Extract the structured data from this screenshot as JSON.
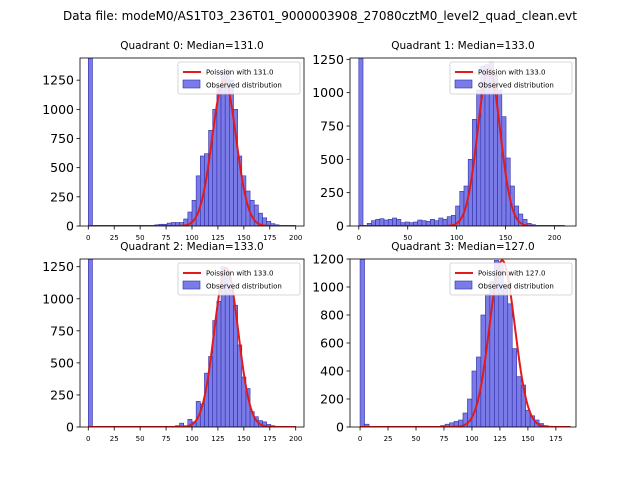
{
  "figure": {
    "suptitle": "Data file: modeM0/AS1T03_236T01_9000003908_27080cztM0_level2_quad_clean.evt"
  },
  "colors": {
    "hist_fill": "#7b7be8",
    "hist_edge": "#3030a8",
    "fit_line": "#e31a1c",
    "axis": "#000000"
  },
  "chart_data": [
    {
      "type": "bar",
      "title": "Quadrant 0: Median=131.0",
      "xlim": [
        -8,
        208
      ],
      "ylim": [
        0,
        1440
      ],
      "xticks": [
        0,
        25,
        50,
        75,
        100,
        125,
        150,
        175,
        200
      ],
      "yticks": [
        0,
        250,
        500,
        750,
        1000,
        1250
      ],
      "bin_width": 4,
      "legend": {
        "placement": "top-right",
        "entries": [
          "Poission with 131.0",
          "Observed distribution"
        ]
      },
      "poisson": {
        "label": "Poission with 131.0",
        "mean": 131.0,
        "peak": 1250,
        "sigma": 11.5,
        "range": [
          0,
          200
        ]
      },
      "histogram": {
        "label": "Observed distribution",
        "bin_edges": [
          0,
          4,
          8,
          12,
          16,
          20,
          24,
          28,
          32,
          36,
          40,
          44,
          48,
          52,
          56,
          60,
          64,
          68,
          72,
          76,
          80,
          84,
          88,
          92,
          96,
          100,
          104,
          108,
          112,
          116,
          120,
          124,
          128,
          132,
          136,
          140,
          144,
          148,
          152,
          156,
          160,
          164,
          168,
          172,
          176,
          180,
          184,
          188,
          192,
          196,
          200
        ],
        "counts": [
          1440,
          3,
          3,
          3,
          3,
          3,
          3,
          3,
          3,
          3,
          3,
          3,
          3,
          3,
          3,
          3,
          10,
          15,
          15,
          25,
          30,
          30,
          30,
          60,
          120,
          220,
          430,
          600,
          620,
          820,
          1000,
          1200,
          1330,
          1340,
          1250,
          1000,
          600,
          430,
          300,
          220,
          180,
          110,
          70,
          40,
          20,
          10,
          5,
          3,
          3,
          3
        ]
      }
    },
    {
      "type": "bar",
      "title": "Quadrant 1: Median=133.0",
      "xlim": [
        -9,
        222
      ],
      "ylim": [
        0,
        1260
      ],
      "xticks": [
        0,
        50,
        100,
        150,
        200
      ],
      "yticks": [
        0,
        250,
        500,
        750,
        1000,
        1250
      ],
      "bin_width": 4.3,
      "legend": {
        "placement": "top-right",
        "entries": [
          "Poission with 133.0",
          "Observed distribution"
        ]
      },
      "poisson": {
        "label": "Poission with 133.0",
        "mean": 133.0,
        "peak": 1180,
        "sigma": 11.5,
        "range": [
          0,
          210
        ]
      },
      "histogram": {
        "label": "Observed distribution",
        "bin_edges": [
          0,
          4.3,
          8.6,
          12.9,
          17.2,
          21.5,
          25.8,
          30.1,
          34.4,
          38.7,
          43.0,
          47.3,
          51.6,
          55.9,
          60.2,
          64.5,
          68.8,
          73.1,
          77.4,
          81.7,
          86.0,
          90.3,
          94.6,
          98.9,
          103.2,
          107.5,
          111.8,
          116.1,
          120.4,
          124.7,
          129.0,
          133.3,
          137.6,
          141.9,
          146.2,
          150.5,
          154.8,
          159.1,
          163.4,
          167.7,
          172.0,
          176.3,
          180.6,
          184.9,
          189.2,
          193.5,
          197.8,
          202.1,
          206.4,
          210.7
        ],
        "counts": [
          1260,
          5,
          20,
          40,
          50,
          55,
          45,
          50,
          60,
          50,
          25,
          30,
          25,
          30,
          45,
          40,
          35,
          50,
          40,
          60,
          50,
          70,
          80,
          150,
          260,
          300,
          500,
          800,
          1020,
          1200,
          1210,
          1230,
          1130,
          1020,
          820,
          510,
          300,
          150,
          90,
          50,
          20,
          10,
          3,
          3,
          3,
          3,
          3,
          3,
          3
        ]
      }
    },
    {
      "type": "bar",
      "title": "Quadrant 2: Median=133.0",
      "xlim": [
        -8,
        208
      ],
      "ylim": [
        0,
        1310
      ],
      "xticks": [
        0,
        25,
        50,
        75,
        100,
        125,
        150,
        175,
        200
      ],
      "yticks": [
        0,
        250,
        500,
        750,
        1000,
        1250
      ],
      "bin_width": 4,
      "legend": {
        "placement": "top-right",
        "entries": [
          "Poission with 133.0",
          "Observed distribution"
        ]
      },
      "poisson": {
        "label": "Poission with 133.0",
        "mean": 133.0,
        "peak": 1240,
        "sigma": 11.5,
        "range": [
          0,
          200
        ]
      },
      "histogram": {
        "label": "Observed distribution",
        "bin_edges": [
          0,
          4,
          8,
          12,
          16,
          20,
          24,
          28,
          32,
          36,
          40,
          44,
          48,
          52,
          56,
          60,
          64,
          68,
          72,
          76,
          80,
          84,
          88,
          92,
          96,
          100,
          104,
          108,
          112,
          116,
          120,
          124,
          128,
          132,
          136,
          140,
          144,
          148,
          152,
          156,
          160,
          164,
          168,
          172,
          176,
          180,
          184,
          188,
          192,
          196,
          200
        ],
        "counts": [
          1310,
          3,
          3,
          3,
          3,
          3,
          3,
          3,
          3,
          3,
          3,
          3,
          3,
          3,
          3,
          3,
          3,
          3,
          3,
          3,
          5,
          10,
          30,
          10,
          60,
          40,
          200,
          180,
          420,
          550,
          830,
          980,
          1250,
          1220,
          1100,
          950,
          640,
          390,
          300,
          120,
          80,
          50,
          40,
          20,
          10,
          5,
          3,
          3,
          3,
          3
        ]
      }
    },
    {
      "type": "bar",
      "title": "Quadrant 3: Median=127.0",
      "xlim": [
        -9,
        193
      ],
      "ylim": [
        0,
        1200
      ],
      "xticks": [
        0,
        25,
        50,
        75,
        100,
        125,
        150,
        175
      ],
      "yticks": [
        0,
        200,
        400,
        600,
        800,
        1000,
        1200
      ],
      "bin_width": 4,
      "legend": {
        "placement": "top-right",
        "entries": [
          "Poission with 127.0",
          "Observed distribution"
        ]
      },
      "poisson": {
        "label": "Poission with 127.0",
        "mean": 127.0,
        "peak": 1190,
        "sigma": 11.3,
        "range": [
          0,
          188
        ]
      },
      "histogram": {
        "label": "Observed distribution",
        "bin_edges": [
          0,
          4,
          8,
          12,
          16,
          20,
          24,
          28,
          32,
          36,
          40,
          44,
          48,
          52,
          56,
          60,
          64,
          68,
          72,
          76,
          80,
          84,
          88,
          92,
          96,
          100,
          104,
          108,
          112,
          116,
          120,
          124,
          128,
          132,
          136,
          140,
          144,
          148,
          152,
          156,
          160,
          164,
          168,
          172,
          176,
          180,
          184,
          188
        ],
        "counts": [
          1200,
          20,
          3,
          3,
          3,
          3,
          3,
          3,
          3,
          3,
          3,
          3,
          3,
          3,
          3,
          3,
          3,
          5,
          10,
          20,
          30,
          40,
          50,
          100,
          200,
          400,
          500,
          800,
          950,
          1040,
          1190,
          1160,
          1020,
          880,
          560,
          360,
          300,
          120,
          80,
          50,
          25,
          10,
          5,
          3,
          3,
          3,
          3
        ]
      }
    }
  ]
}
